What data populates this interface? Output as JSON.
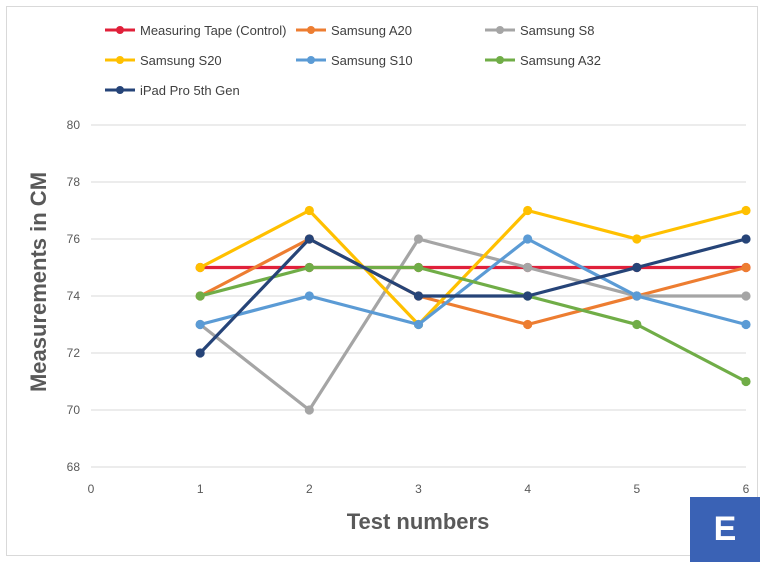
{
  "chart_data": {
    "type": "line",
    "title": "",
    "xlabel": "Test numbers",
    "ylabel": "Measurements in CM",
    "xlim": [
      0,
      6
    ],
    "ylim": [
      68,
      80
    ],
    "x_ticks": [
      0,
      1,
      2,
      3,
      4,
      5,
      6
    ],
    "y_ticks": [
      68,
      70,
      72,
      74,
      76,
      78,
      80
    ],
    "grid": "horizontal",
    "legend_position": "top",
    "x": [
      1,
      2,
      3,
      4,
      5,
      6
    ],
    "series": [
      {
        "name": "Measuring Tape (Control)",
        "color": "#e0203a",
        "values": [
          75,
          75,
          75,
          75,
          75,
          75
        ]
      },
      {
        "name": "Samsung A20",
        "color": "#ed7d31",
        "values": [
          74,
          76,
          74,
          73,
          74,
          75
        ]
      },
      {
        "name": "Samsung S8",
        "color": "#a5a5a5",
        "values": [
          73,
          70,
          76,
          75,
          74,
          74
        ]
      },
      {
        "name": "Samsung S20",
        "color": "#ffc000",
        "values": [
          75,
          77,
          73,
          77,
          76,
          77
        ]
      },
      {
        "name": "Samsung S10",
        "color": "#5b9bd5",
        "values": [
          73,
          74,
          73,
          76,
          74,
          73
        ]
      },
      {
        "name": "Samsung A32",
        "color": "#70ad47",
        "values": [
          74,
          75,
          75,
          74,
          73,
          71
        ]
      },
      {
        "name": "iPad Pro 5th Gen",
        "color": "#264478",
        "values": [
          72,
          76,
          74,
          74,
          75,
          76
        ]
      }
    ]
  },
  "badge": {
    "label": "E",
    "color": "#3a62b5"
  }
}
